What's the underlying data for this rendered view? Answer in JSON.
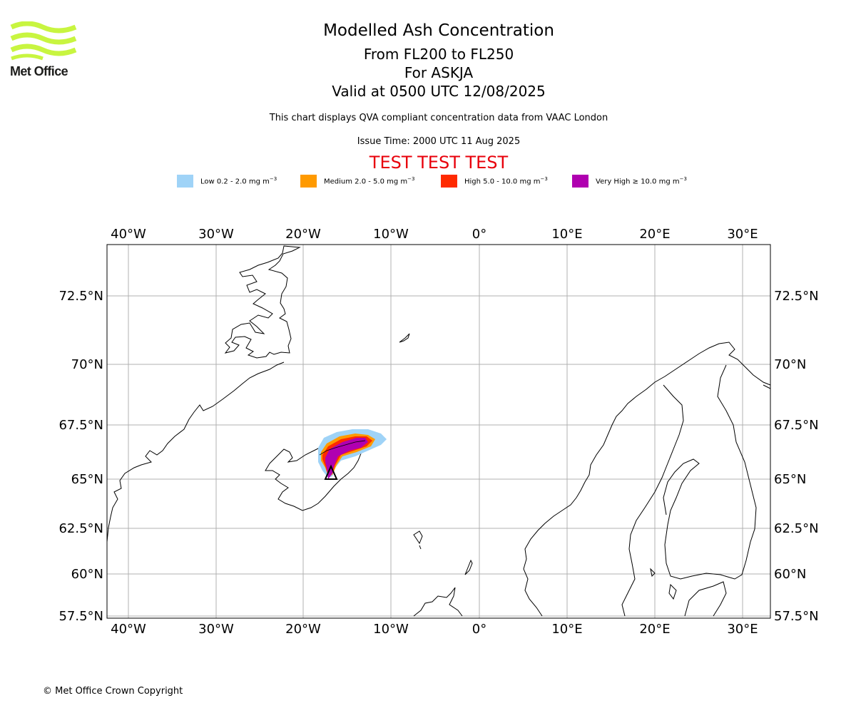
{
  "logo": {
    "text": "Met Office",
    "color": "#c8f540"
  },
  "title": "Modelled Ash Concentration",
  "subtitle_lines": [
    "From FL200 to FL250",
    "For ASKJA",
    "Valid at 0500 UTC 12/08/2025"
  ],
  "compliance_note": "This chart displays QVA compliant concentration data from VAAC London",
  "issue_time": "Issue Time: 2000 UTC 11 Aug 2025",
  "test_banner": "TEST TEST TEST",
  "legend": [
    {
      "label": "Low 0.2 - 2.0 mg m",
      "exp": "−3",
      "color": "#9fd3f7"
    },
    {
      "label": "Medium 2.0 - 5.0 mg m",
      "exp": "−3",
      "color": "#ff9a00"
    },
    {
      "label": "High 5.0 - 10.0 mg m",
      "exp": "−3",
      "color": "#ff2a00"
    },
    {
      "label": "Very High ≥ 10.0 mg m",
      "exp": "−3",
      "color": "#b000b0"
    }
  ],
  "map": {
    "lon_labels": [
      "40°W",
      "30°W",
      "20°W",
      "10°W",
      "0°",
      "10°E",
      "20°E",
      "30°E"
    ],
    "lat_labels": [
      "72.5°N",
      "70°N",
      "67.5°N",
      "65°N",
      "62.5°N",
      "60°N",
      "57.5°N"
    ],
    "volcano": "ASKJA",
    "volcano_marker": "triangle"
  },
  "copyright": "© Met Office Crown Copyright"
}
